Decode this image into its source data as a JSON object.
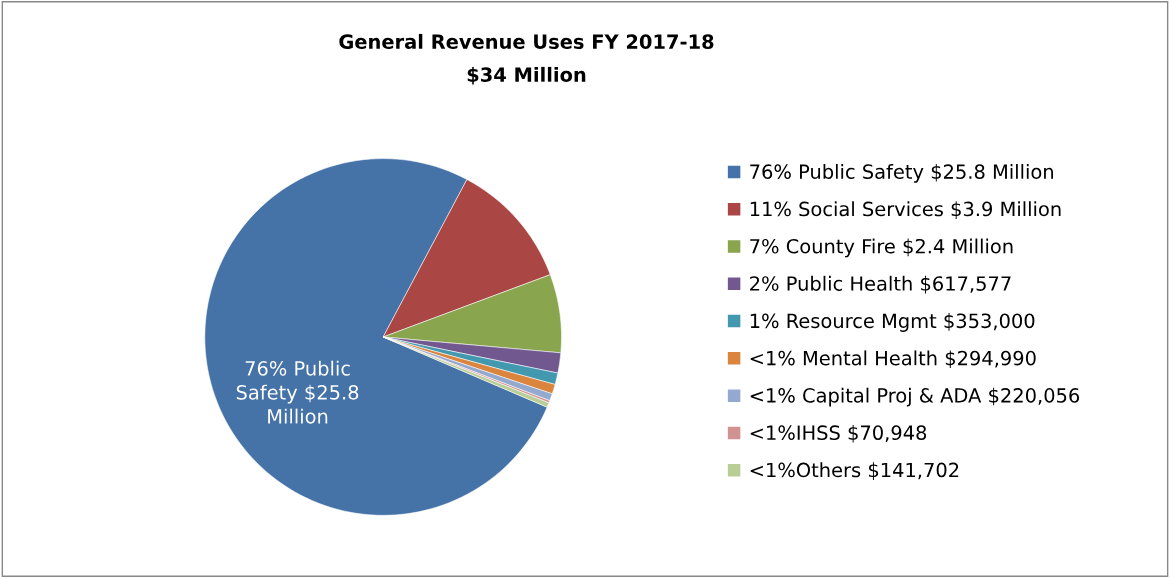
{
  "chart_data": {
    "type": "pie",
    "title": "General Revenue Uses FY 2017-18",
    "subtitle": "$34 Million",
    "categories": [
      "76% Public Safety $25.8 Million",
      "11% Social Services $3.9 Million",
      "7% County Fire $2.4 Million",
      "2% Public Health $617,577",
      "1% Resource Mgmt $353,000",
      "<1% Mental Health $294,990",
      "<1% Capital Proj & ADA $220,056",
      "<1%IHSS $70,948",
      "<1%Others $141,702"
    ],
    "values": [
      25800000,
      3900000,
      2400000,
      617577,
      353000,
      294990,
      220056,
      70948,
      141702
    ],
    "colors": [
      "#4572a7",
      "#aa4643",
      "#89a54e",
      "#71588f",
      "#4198af",
      "#db843d",
      "#93a9cf",
      "#d19392",
      "#b9cd96"
    ],
    "annotations": [
      "76% Public\nSafety $25.8\nMillion"
    ],
    "legend": "right"
  }
}
